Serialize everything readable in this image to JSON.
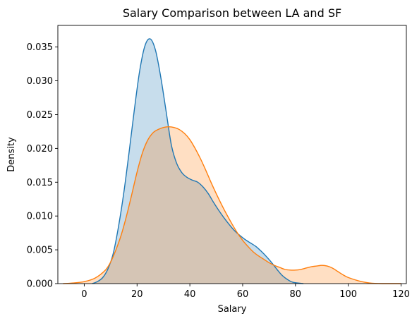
{
  "chart_data": {
    "type": "area",
    "title": "Salary Comparison between LA and SF",
    "xlabel": "Salary",
    "ylabel": "Density",
    "xlim": [
      -10,
      122
    ],
    "ylim": [
      0,
      0.0382
    ],
    "xticks": [
      "0",
      "20",
      "40",
      "60",
      "80",
      "100",
      "120"
    ],
    "yticks": [
      "0.000",
      "0.005",
      "0.010",
      "0.015",
      "0.020",
      "0.025",
      "0.030",
      "0.035"
    ],
    "grid": false,
    "legend": "none",
    "series": [
      {
        "color": "#1f77b4",
        "fill_color": "#1f77b4",
        "fill_opacity": 0.25,
        "points": [
          [
            3,
            0.0
          ],
          [
            5,
            0.0003
          ],
          [
            7,
            0.0009
          ],
          [
            9,
            0.0022
          ],
          [
            11,
            0.0045
          ],
          [
            13,
            0.0085
          ],
          [
            15,
            0.0135
          ],
          [
            17,
            0.0195
          ],
          [
            19,
            0.0258
          ],
          [
            21,
            0.0315
          ],
          [
            23,
            0.0352
          ],
          [
            25,
            0.0362
          ],
          [
            27,
            0.0345
          ],
          [
            29,
            0.0305
          ],
          [
            31,
            0.0255
          ],
          [
            33,
            0.0205
          ],
          [
            35,
            0.0178
          ],
          [
            37,
            0.0164
          ],
          [
            39,
            0.0157
          ],
          [
            41,
            0.0153
          ],
          [
            43,
            0.015
          ],
          [
            45,
            0.0143
          ],
          [
            47,
            0.0133
          ],
          [
            49,
            0.012
          ],
          [
            51,
            0.0108
          ],
          [
            53,
            0.0097
          ],
          [
            55,
            0.0087
          ],
          [
            57,
            0.0078
          ],
          [
            59,
            0.0071
          ],
          [
            61,
            0.0065
          ],
          [
            63,
            0.006
          ],
          [
            65,
            0.0055
          ],
          [
            67,
            0.0048
          ],
          [
            69,
            0.004
          ],
          [
            71,
            0.0031
          ],
          [
            73,
            0.0021
          ],
          [
            75,
            0.0012
          ],
          [
            77,
            0.0006
          ],
          [
            79,
            0.0002
          ],
          [
            83,
            0.0
          ]
        ]
      },
      {
        "color": "#ff7f0e",
        "fill_color": "#ff7f0e",
        "fill_opacity": 0.25,
        "points": [
          [
            -8,
            0.0
          ],
          [
            -4,
            0.0001
          ],
          [
            0,
            0.0003
          ],
          [
            4,
            0.0008
          ],
          [
            8,
            0.002
          ],
          [
            10,
            0.0032
          ],
          [
            12,
            0.005
          ],
          [
            14,
            0.0072
          ],
          [
            16,
            0.01
          ],
          [
            18,
            0.0132
          ],
          [
            20,
            0.0165
          ],
          [
            22,
            0.0193
          ],
          [
            24,
            0.0212
          ],
          [
            26,
            0.0223
          ],
          [
            28,
            0.0228
          ],
          [
            30,
            0.0231
          ],
          [
            32,
            0.0232
          ],
          [
            34,
            0.0231
          ],
          [
            36,
            0.0228
          ],
          [
            38,
            0.0222
          ],
          [
            40,
            0.0213
          ],
          [
            42,
            0.02
          ],
          [
            44,
            0.0185
          ],
          [
            46,
            0.0168
          ],
          [
            48,
            0.015
          ],
          [
            50,
            0.0133
          ],
          [
            52,
            0.0117
          ],
          [
            54,
            0.0102
          ],
          [
            56,
            0.0088
          ],
          [
            58,
            0.0075
          ],
          [
            60,
            0.0064
          ],
          [
            62,
            0.0055
          ],
          [
            64,
            0.0047
          ],
          [
            66,
            0.0041
          ],
          [
            68,
            0.0036
          ],
          [
            70,
            0.0031
          ],
          [
            72,
            0.0027
          ],
          [
            74,
            0.0024
          ],
          [
            76,
            0.0021
          ],
          [
            78,
            0.002
          ],
          [
            80,
            0.002
          ],
          [
            82,
            0.0021
          ],
          [
            84,
            0.0023
          ],
          [
            86,
            0.0025
          ],
          [
            88,
            0.0026
          ],
          [
            90,
            0.0027
          ],
          [
            92,
            0.0026
          ],
          [
            94,
            0.0023
          ],
          [
            96,
            0.0018
          ],
          [
            98,
            0.0013
          ],
          [
            100,
            0.0009
          ],
          [
            104,
            0.0004
          ],
          [
            108,
            0.0001
          ],
          [
            113,
            0.0
          ],
          [
            120,
            0.0
          ]
        ]
      }
    ]
  }
}
